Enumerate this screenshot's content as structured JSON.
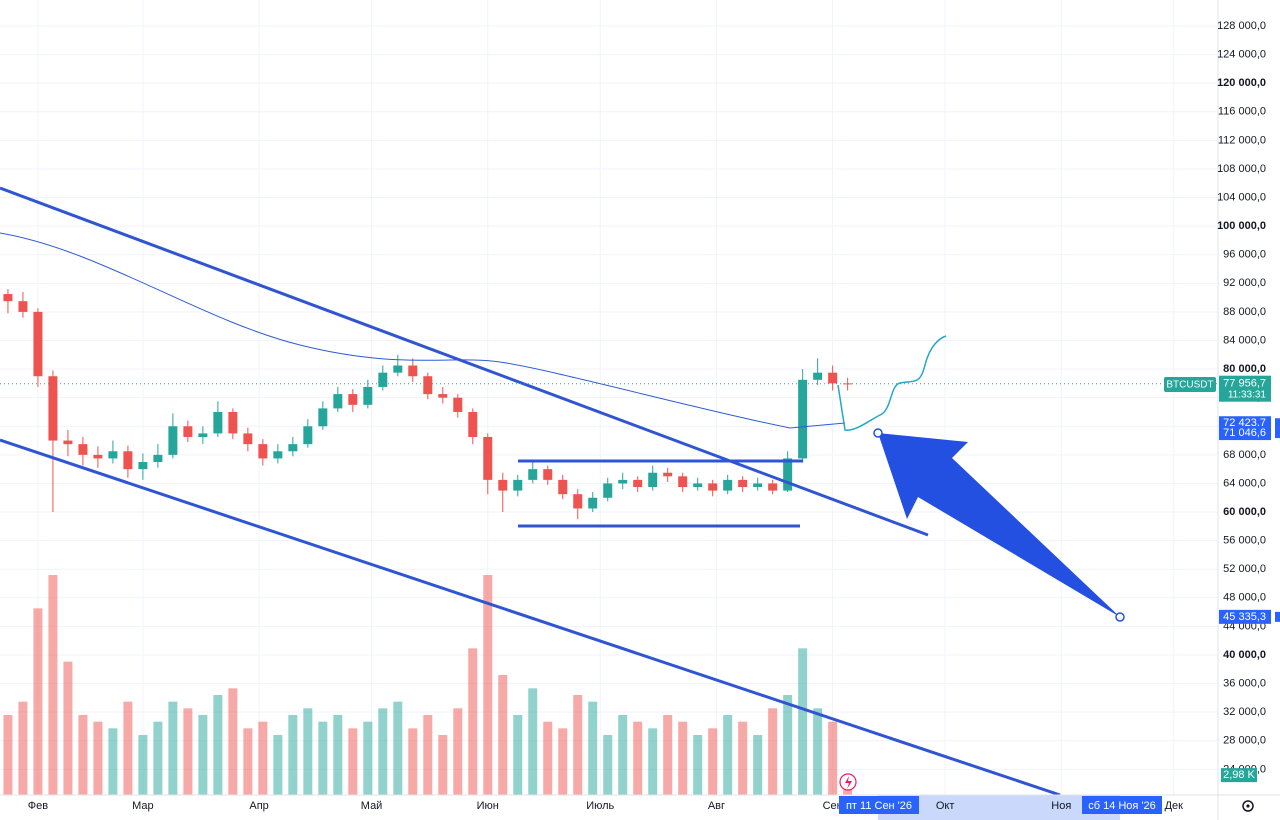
{
  "chart_data": {
    "type": "candlestick",
    "symbol": "BTCUSDT",
    "last_price": {
      "value": 77956.7,
      "label": "77 956,7"
    },
    "countdown": "11:33:31",
    "up_color": "#26a69a",
    "down_color": "#ef5350",
    "grid": true,
    "ohlc": [
      [
        90500,
        91200,
        87800,
        89500
      ],
      [
        89500,
        90800,
        87200,
        88000
      ],
      [
        88000,
        88500,
        77500,
        79000
      ],
      [
        79000,
        79800,
        60000,
        70000
      ],
      [
        70000,
        71500,
        67800,
        69500
      ],
      [
        69500,
        70500,
        66500,
        68000
      ],
      [
        68000,
        69200,
        66200,
        67500
      ],
      [
        67500,
        70000,
        66800,
        68500
      ],
      [
        68500,
        69300,
        64800,
        66000
      ],
      [
        66000,
        68200,
        64500,
        67000
      ],
      [
        67000,
        69500,
        66200,
        68000
      ],
      [
        68000,
        73800,
        67500,
        72000
      ],
      [
        72000,
        72800,
        69800,
        70500
      ],
      [
        70500,
        72000,
        69500,
        71000
      ],
      [
        71000,
        75500,
        70500,
        74000
      ],
      [
        74000,
        74500,
        70200,
        71000
      ],
      [
        71000,
        71800,
        68500,
        69500
      ],
      [
        69500,
        70200,
        66500,
        67500
      ],
      [
        67500,
        69500,
        66800,
        68500
      ],
      [
        68500,
        70500,
        67800,
        69500
      ],
      [
        69500,
        73000,
        69000,
        72000
      ],
      [
        72000,
        75500,
        71500,
        74500
      ],
      [
        74500,
        77500,
        74000,
        76500
      ],
      [
        76500,
        77200,
        74000,
        75000
      ],
      [
        75000,
        78500,
        74500,
        77500
      ],
      [
        77500,
        80500,
        77000,
        79500
      ],
      [
        79500,
        82000,
        79000,
        80500
      ],
      [
        80500,
        81500,
        78200,
        79000
      ],
      [
        79000,
        79500,
        75800,
        76500
      ],
      [
        76500,
        77500,
        75200,
        76000
      ],
      [
        76000,
        76500,
        73200,
        74000
      ],
      [
        74000,
        74500,
        69500,
        70500
      ],
      [
        70500,
        71000,
        62500,
        64500
      ],
      [
        64500,
        65500,
        60000,
        63000
      ],
      [
        63000,
        65200,
        62200,
        64500
      ],
      [
        64500,
        67000,
        64000,
        66000
      ],
      [
        66000,
        66500,
        63800,
        64500
      ],
      [
        64500,
        65200,
        61800,
        62500
      ],
      [
        62500,
        63200,
        59000,
        60500
      ],
      [
        60500,
        62800,
        60000,
        62000
      ],
      [
        62000,
        64800,
        61500,
        64000
      ],
      [
        64000,
        65500,
        63200,
        64500
      ],
      [
        64500,
        65000,
        62800,
        63500
      ],
      [
        63500,
        66500,
        63000,
        65500
      ],
      [
        65500,
        66200,
        64200,
        65000
      ],
      [
        65000,
        65500,
        62800,
        63500
      ],
      [
        63500,
        64800,
        63000,
        64000
      ],
      [
        64000,
        64500,
        62200,
        63000
      ],
      [
        63000,
        65200,
        62500,
        64500
      ],
      [
        64500,
        65000,
        62800,
        63500
      ],
      [
        63500,
        64800,
        63000,
        64000
      ],
      [
        64000,
        64500,
        62500,
        63000
      ],
      [
        63000,
        68500,
        62800,
        67500
      ],
      [
        67500,
        80000,
        67000,
        78500
      ],
      [
        78500,
        81500,
        77800,
        79500
      ],
      [
        79500,
        80500,
        77000,
        78000
      ],
      [
        78000,
        78800,
        77000,
        77956.7
      ]
    ],
    "volumes": [
      12,
      14,
      28,
      33,
      20,
      12,
      11,
      10,
      14,
      9,
      11,
      14,
      13,
      12,
      15,
      16,
      10,
      11,
      9,
      12,
      13,
      11,
      12,
      10,
      11,
      13,
      14,
      10,
      12,
      9,
      13,
      22,
      33,
      18,
      12,
      16,
      11,
      10,
      15,
      14,
      9,
      12,
      11,
      10,
      12,
      11,
      9,
      10,
      12,
      11,
      9,
      13,
      15,
      22,
      13,
      11,
      2.98
    ],
    "last_volume": {
      "value": 2.98,
      "label": "2,98 K"
    },
    "vlim": [
      0,
      36
    ],
    "ylim": [
      20412,
      131638
    ],
    "yticks": [
      {
        "value": 24000,
        "label": "24 000,0"
      },
      {
        "value": 28000,
        "label": "28 000,0"
      },
      {
        "value": 32000,
        "label": "32 000,0"
      },
      {
        "value": 36000,
        "label": "36 000,0"
      },
      {
        "value": 40000,
        "label": "40 000,0"
      },
      {
        "value": 44000,
        "label": "44 000,0"
      },
      {
        "value": 48000,
        "label": "48 000,0"
      },
      {
        "value": 52000,
        "label": "52 000,0"
      },
      {
        "value": 56000,
        "label": "56 000,0"
      },
      {
        "value": 60000,
        "label": "60 000,0"
      },
      {
        "value": 64000,
        "label": "64 000,0"
      },
      {
        "value": 68000,
        "label": "68 000,0"
      },
      {
        "value": 72000,
        "label": "72 000,0"
      },
      {
        "value": 76000,
        "label": "76 000,0"
      },
      {
        "value": 80000,
        "label": "80 000,0"
      },
      {
        "value": 84000,
        "label": "84 000,0"
      },
      {
        "value": 88000,
        "label": "88 000,0"
      },
      {
        "value": 92000,
        "label": "92 000,0"
      },
      {
        "value": 96000,
        "label": "96 000,0"
      },
      {
        "value": 100000,
        "label": "100 000,0"
      },
      {
        "value": 104000,
        "label": "104 000,0"
      },
      {
        "value": 108000,
        "label": "108 000,0"
      },
      {
        "value": 112000,
        "label": "112 000,0"
      },
      {
        "value": 116000,
        "label": "116 000,0"
      },
      {
        "value": 120000,
        "label": "120 000,0"
      },
      {
        "value": 124000,
        "label": "124 000,0"
      },
      {
        "value": 128000,
        "label": "128 000,0"
      }
    ],
    "xlim": [
      -0.53,
      80.7
    ],
    "xticks": [
      {
        "value": 2,
        "label": "Фев"
      },
      {
        "value": 9,
        "label": "Мар"
      },
      {
        "value": 16.75,
        "label": "Апр"
      },
      {
        "value": 24.25,
        "label": "Май"
      },
      {
        "value": 32,
        "label": "Июн"
      },
      {
        "value": 39.5,
        "label": "Июль"
      },
      {
        "value": 47.25,
        "label": "Авг"
      },
      {
        "value": 55,
        "label": "Сен"
      },
      {
        "value": 62.5,
        "label": "Окт"
      },
      {
        "value": 70.25,
        "label": "Ноя"
      },
      {
        "value": 77.75,
        "label": "Дек"
      }
    ],
    "price_labels": [
      {
        "value": 72423.7,
        "label": "72 423,7"
      },
      {
        "value": 71046.6,
        "label": "71 046,6"
      },
      {
        "value": 45335.3,
        "label": "45 335,3"
      }
    ],
    "date_labels": [
      "пт 11 Сен '26",
      "сб 14 Ноя '26"
    ]
  }
}
